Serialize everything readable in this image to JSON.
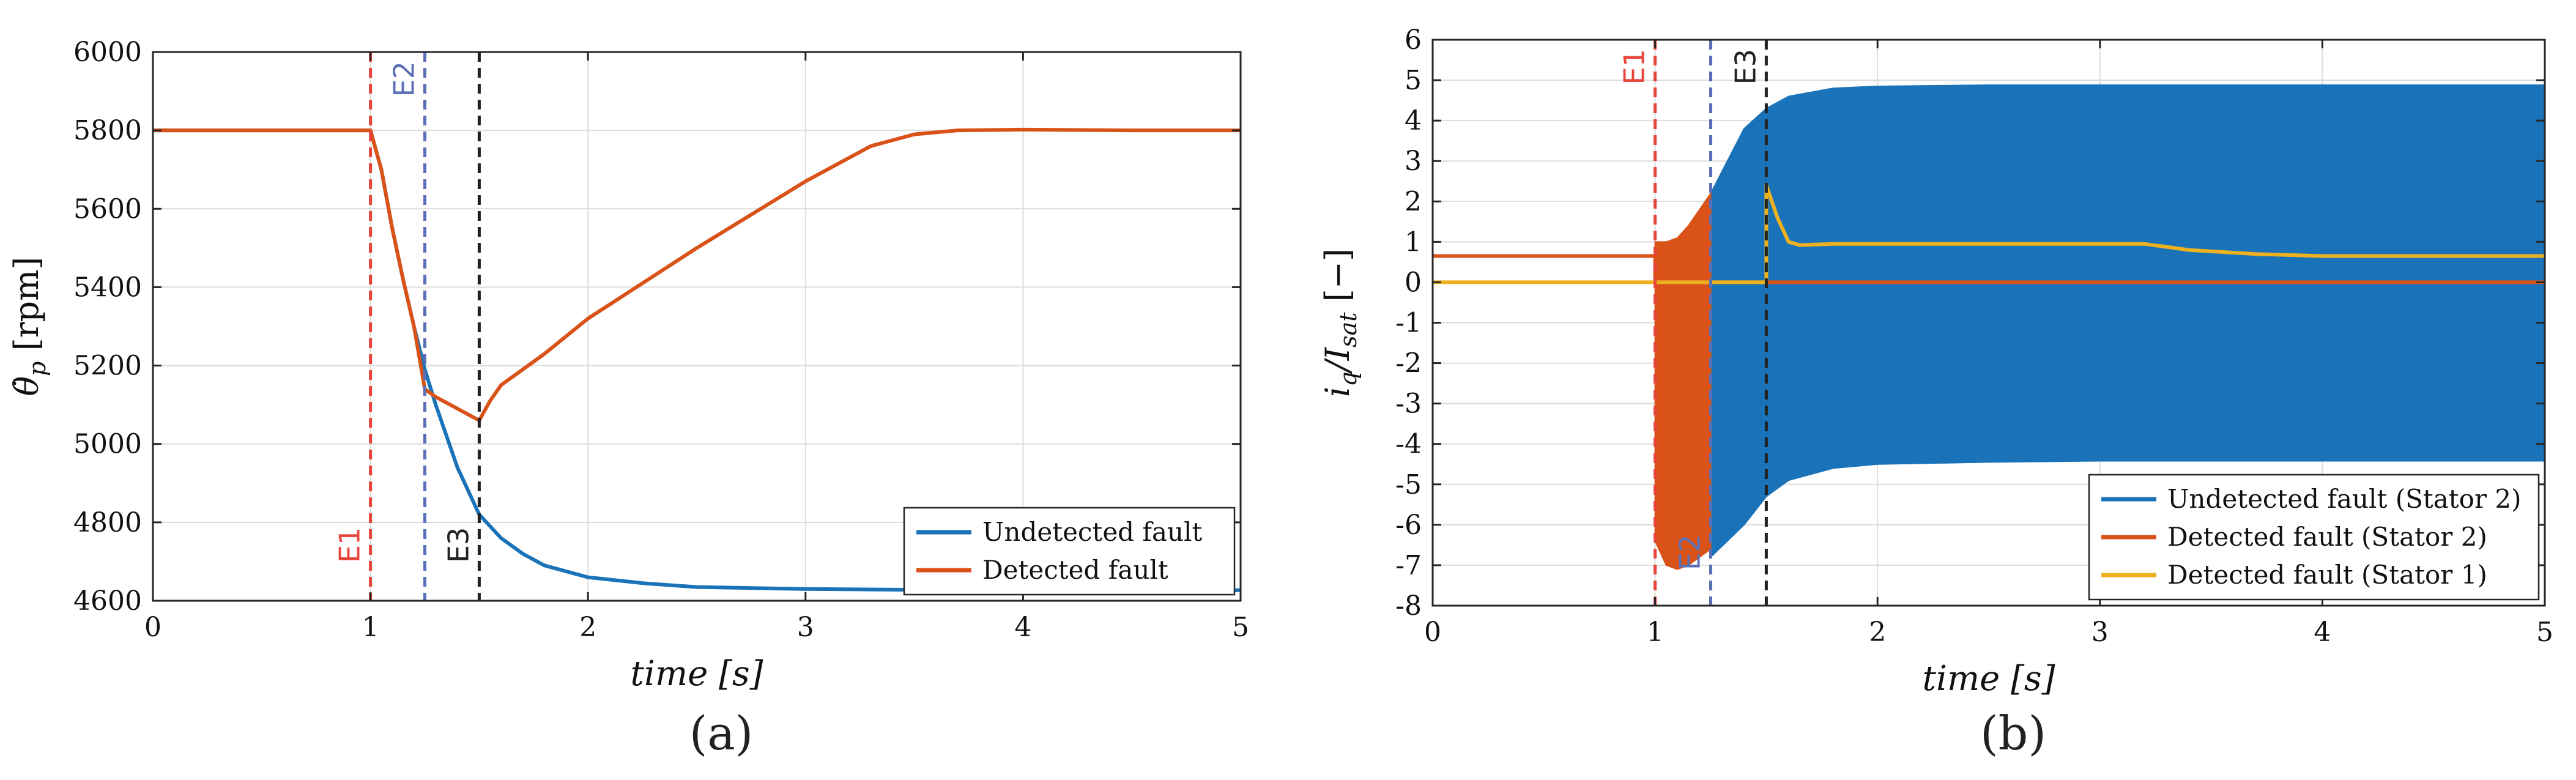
{
  "chart_data": [
    {
      "type": "line",
      "panel_label": "(a)",
      "xlabel": "time [s]",
      "ylabel": "θ̇p [rpm]",
      "xlim": [
        0,
        5
      ],
      "ylim": [
        4600,
        6000
      ],
      "xticks": [
        "0",
        "1",
        "2",
        "3",
        "4",
        "5"
      ],
      "yticks": [
        "4600",
        "4800",
        "5000",
        "5200",
        "5400",
        "5600",
        "5800",
        "6000"
      ],
      "grid": true,
      "legend_position": "bottom-right",
      "events": [
        {
          "label": "E1",
          "x": 1.0,
          "color": "#e8443a",
          "label_position": "bottom"
        },
        {
          "label": "E2",
          "x": 1.25,
          "color": "#5a6fb5",
          "label_position": "top"
        },
        {
          "label": "E3",
          "x": 1.5,
          "color": "#222222",
          "label_position": "bottom"
        }
      ],
      "series": [
        {
          "name": "Undetected fault",
          "color": "#1a73b8",
          "x": [
            0,
            0.5,
            1.0,
            1.05,
            1.1,
            1.15,
            1.2,
            1.25,
            1.3,
            1.4,
            1.5,
            1.6,
            1.7,
            1.8,
            2.0,
            2.25,
            2.5,
            3.0,
            3.5,
            4.0,
            5.0
          ],
          "y": [
            5800,
            5800,
            5800,
            5700,
            5550,
            5420,
            5300,
            5190,
            5100,
            4940,
            4820,
            4760,
            4720,
            4690,
            4660,
            4645,
            4635,
            4630,
            4628,
            4627,
            4627
          ]
        },
        {
          "name": "Detected fault",
          "color": "#d95319",
          "x": [
            0,
            0.5,
            1.0,
            1.05,
            1.1,
            1.15,
            1.2,
            1.25,
            1.3,
            1.4,
            1.5,
            1.55,
            1.6,
            1.8,
            2.0,
            2.5,
            3.0,
            3.3,
            3.5,
            3.7,
            4.0,
            4.5,
            5.0
          ],
          "y": [
            5800,
            5800,
            5800,
            5700,
            5550,
            5420,
            5300,
            5140,
            5120,
            5090,
            5060,
            5110,
            5150,
            5230,
            5320,
            5500,
            5670,
            5760,
            5790,
            5800,
            5802,
            5800,
            5800
          ]
        }
      ]
    },
    {
      "type": "line",
      "panel_label": "(b)",
      "xlabel": "time [s]",
      "ylabel": "iq/Isat [−]",
      "xlim": [
        0,
        5
      ],
      "ylim": [
        -8,
        6
      ],
      "xticks": [
        "0",
        "1",
        "2",
        "3",
        "4",
        "5"
      ],
      "yticks": [
        "-8",
        "-7",
        "-6",
        "-5",
        "-4",
        "-3",
        "-2",
        "-1",
        "0",
        "1",
        "2",
        "3",
        "4",
        "5",
        "6"
      ],
      "grid": true,
      "legend_position": "bottom-right",
      "events": [
        {
          "label": "E1",
          "x": 1.0,
          "color": "#e8443a",
          "label_position": "top"
        },
        {
          "label": "E2",
          "x": 1.25,
          "color": "#5a6fb5",
          "label_position": "bottom"
        },
        {
          "label": "E3",
          "x": 1.5,
          "color": "#222222",
          "label_position": "top"
        }
      ],
      "series": [
        {
          "name": "Undetected fault (Stator 2)",
          "color": "#1a73b8",
          "render": "oscillation envelope",
          "x": [
            1.25,
            1.4,
            1.5,
            1.6,
            1.8,
            2.0,
            2.5,
            3.0,
            4.0,
            5.0
          ],
          "upper": [
            2.2,
            3.8,
            4.3,
            4.6,
            4.8,
            4.85,
            4.88,
            4.88,
            4.88,
            4.88
          ],
          "lower": [
            -6.8,
            -6.0,
            -5.3,
            -4.9,
            -4.6,
            -4.5,
            -4.45,
            -4.42,
            -4.42,
            -4.42
          ]
        },
        {
          "name": "Detected fault (Stator 2)",
          "color": "#d95319",
          "x": [
            0,
            0.5,
            1.0,
            1.0,
            1.05,
            1.1,
            1.15,
            1.2,
            1.25,
            1.25,
            2.0,
            3.0,
            4.0,
            5.0
          ],
          "y": [
            0.65,
            0.65,
            0.65,
            0,
            0,
            0,
            0,
            0,
            0,
            0,
            0,
            0,
            0,
            0
          ],
          "oscillation": {
            "x": [
              1.0,
              1.05,
              1.1,
              1.15,
              1.2,
              1.25
            ],
            "upper": [
              1.0,
              1.0,
              1.1,
              1.4,
              1.8,
              2.2
            ],
            "lower": [
              -6.4,
              -7.0,
              -7.1,
              -7.0,
              -6.8,
              -6.6
            ]
          }
        },
        {
          "name": "Detected fault (Stator 1)",
          "color": "#edb120",
          "x": [
            0,
            1.0,
            1.5,
            1.5,
            1.55,
            1.6,
            1.65,
            1.8,
            2.5,
            3.2,
            3.4,
            3.7,
            4.0,
            5.0
          ],
          "y": [
            0,
            0,
            0,
            2.4,
            1.6,
            1.0,
            0.92,
            0.95,
            0.95,
            0.95,
            0.8,
            0.7,
            0.65,
            0.65
          ]
        }
      ]
    }
  ]
}
